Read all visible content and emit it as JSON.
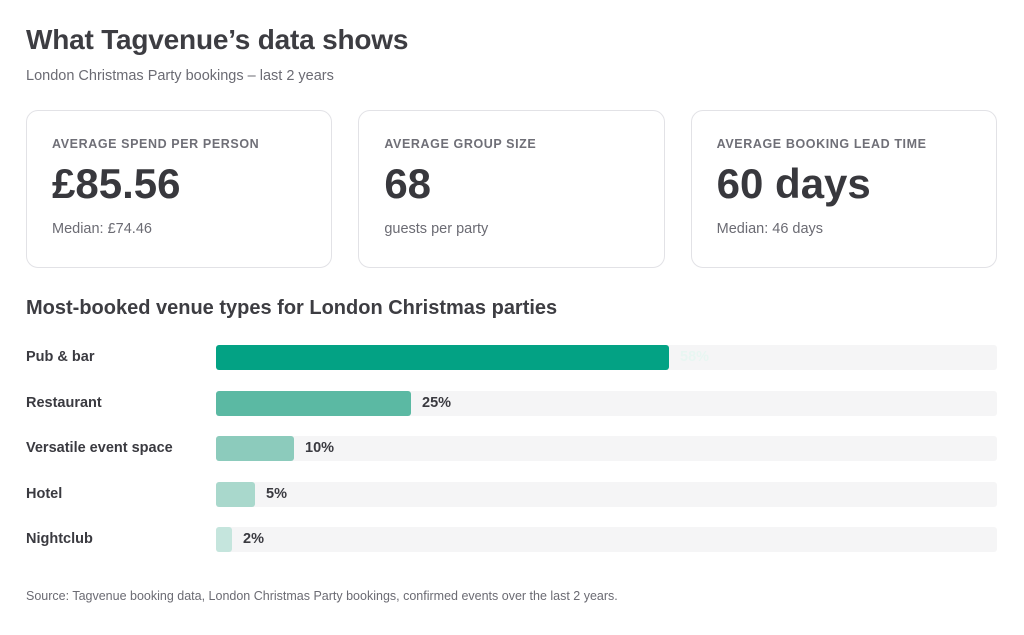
{
  "header": {
    "title": "What Tagvenue’s data shows",
    "subtitle": "London Christmas Party bookings – last 2 years"
  },
  "cards": [
    {
      "label": "AVERAGE SPEND PER PERSON",
      "value": "£85.56",
      "note": "Median: £74.46"
    },
    {
      "label": "AVERAGE GROUP SIZE",
      "value": "68",
      "note": "guests per party"
    },
    {
      "label": "AVERAGE BOOKING LEAD TIME",
      "value": "60 days",
      "note": "Median: 46 days"
    }
  ],
  "chart_data": {
    "type": "bar",
    "orientation": "horizontal",
    "title": "Most-booked venue types for London Christmas parties",
    "categories": [
      "Pub & bar",
      "Restaurant",
      "Versatile event space",
      "Hotel",
      "Nightclub"
    ],
    "values": [
      58,
      25,
      10,
      5,
      2
    ],
    "value_labels": [
      "58%",
      "25%",
      "10%",
      "5%",
      "2%"
    ],
    "xlim": [
      0,
      100
    ],
    "unit": "%",
    "colors": [
      "#03a284",
      "#5bb9a3",
      "#8ccbbc",
      "#a9d8cc",
      "#c5e5dd"
    ],
    "grid": false,
    "legend": "none"
  },
  "footer": {
    "source": "Source: Tagvenue booking data, London Christmas Party bookings, confirmed events over the last 2 years."
  }
}
